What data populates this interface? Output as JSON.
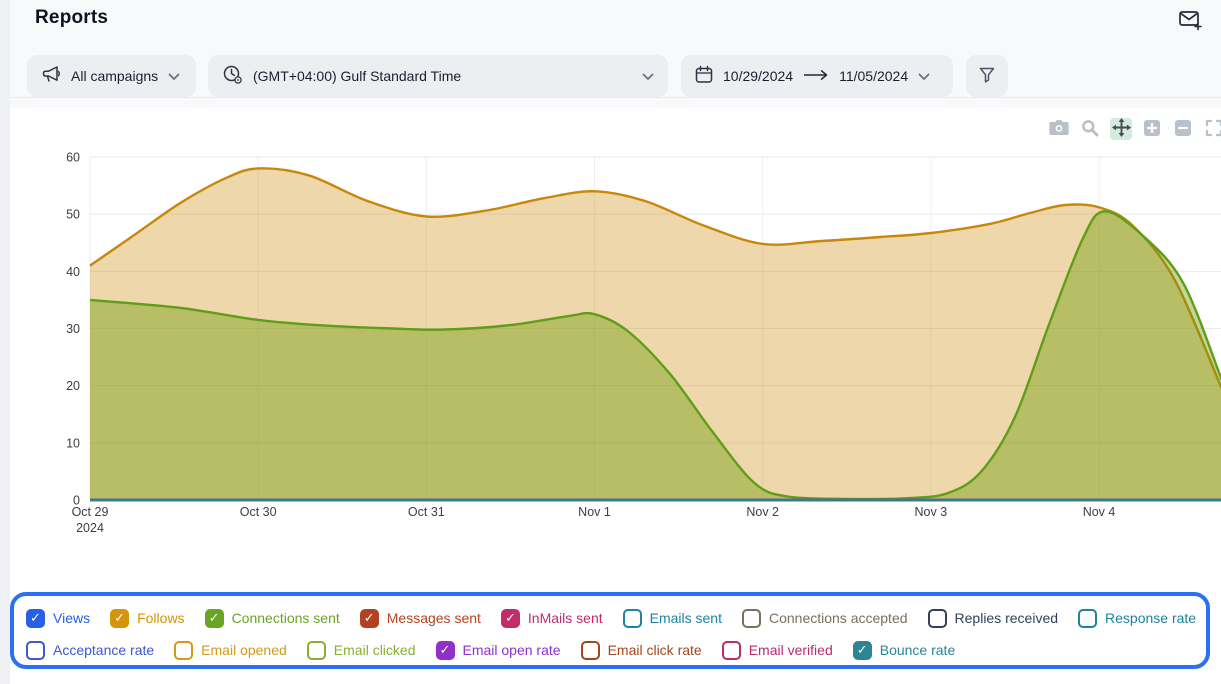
{
  "header": {
    "title": "Reports"
  },
  "filters": {
    "campaigns_label": "All campaigns",
    "timezone_label": "(GMT+04:00) Gulf Standard Time",
    "date_start": "10/29/2024",
    "date_end": "11/05/2024"
  },
  "toolbar": {
    "tools": [
      "camera",
      "zoom",
      "pan",
      "zoom-in",
      "zoom-out",
      "autoscale"
    ],
    "active_tool": "pan"
  },
  "chart_data": {
    "type": "area",
    "title": "",
    "ylim": [
      0,
      60
    ],
    "y_ticks": [
      0,
      10,
      20,
      30,
      40,
      50,
      60
    ],
    "x_ticks": [
      {
        "day": 0,
        "label": "Oct 29",
        "sub": "2024"
      },
      {
        "day": 1,
        "label": "Oct 30"
      },
      {
        "day": 2,
        "label": "Oct 31"
      },
      {
        "day": 3,
        "label": "Nov 1"
      },
      {
        "day": 4,
        "label": "Nov 2"
      },
      {
        "day": 5,
        "label": "Nov 3"
      },
      {
        "day": 6,
        "label": "Nov 4"
      }
    ],
    "grid": true,
    "legend_position": "bottom",
    "series": [
      {
        "name": "Follows",
        "line_color": "#c8870b",
        "fill_color": "#cc8800",
        "fill_opacity": 0.33,
        "points": [
          [
            0,
            41
          ],
          [
            0.27,
            46.5
          ],
          [
            0.54,
            52
          ],
          [
            0.8,
            56.2
          ],
          [
            1,
            58
          ],
          [
            1.3,
            56.8
          ],
          [
            1.65,
            52.3
          ],
          [
            2,
            49.6
          ],
          [
            2.35,
            50.6
          ],
          [
            2.7,
            52.8
          ],
          [
            3,
            54
          ],
          [
            3.3,
            52.3
          ],
          [
            3.65,
            48
          ],
          [
            4,
            44.8
          ],
          [
            4.35,
            45.3
          ],
          [
            4.7,
            46
          ],
          [
            5,
            46.7
          ],
          [
            5.35,
            48.3
          ],
          [
            5.6,
            50.3
          ],
          [
            5.8,
            51.6
          ],
          [
            6,
            51.2
          ],
          [
            6.2,
            48
          ],
          [
            6.45,
            38.5
          ],
          [
            6.73,
            19.5
          ]
        ]
      },
      {
        "name": "Connections sent",
        "line_color": "#5f9e17",
        "fill_color": "#669900",
        "fill_opacity": 0.4,
        "points": [
          [
            0,
            35
          ],
          [
            0.54,
            33.6
          ],
          [
            1,
            31.5
          ],
          [
            1.4,
            30.5
          ],
          [
            1.8,
            30
          ],
          [
            2.1,
            29.8
          ],
          [
            2.5,
            30.6
          ],
          [
            2.85,
            32.2
          ],
          [
            3,
            32.5
          ],
          [
            3.2,
            29.5
          ],
          [
            3.45,
            22
          ],
          [
            3.7,
            12
          ],
          [
            3.95,
            3
          ],
          [
            4.15,
            0.6
          ],
          [
            4.5,
            0.2
          ],
          [
            4.85,
            0.3
          ],
          [
            5.1,
            1.2
          ],
          [
            5.3,
            5
          ],
          [
            5.5,
            14.5
          ],
          [
            5.7,
            30.5
          ],
          [
            5.9,
            45.5
          ],
          [
            6.03,
            50.5
          ],
          [
            6.25,
            46.5
          ],
          [
            6.5,
            38
          ],
          [
            6.73,
            21
          ]
        ]
      },
      {
        "name": "Views",
        "line_color": "#2760e6",
        "fill_color": "none",
        "fill_opacity": 0,
        "points": [
          [
            0,
            0
          ],
          [
            6.73,
            0
          ]
        ]
      },
      {
        "name": "Messages sent",
        "line_color": "#b34320",
        "fill_color": "none",
        "fill_opacity": 0,
        "points": [
          [
            0,
            0
          ],
          [
            6.73,
            0
          ]
        ]
      },
      {
        "name": "InMails sent",
        "line_color": "#c22c6b",
        "fill_color": "none",
        "fill_opacity": 0,
        "points": [
          [
            0,
            0
          ],
          [
            6.73,
            0
          ]
        ]
      },
      {
        "name": "Email open rate",
        "line_color": "#9030c9",
        "fill_color": "none",
        "fill_opacity": 0,
        "points": [
          [
            0,
            0
          ],
          [
            6.73,
            0
          ]
        ]
      },
      {
        "name": "Bounce rate",
        "line_color": "#2f7f91",
        "fill_color": "none",
        "fill_opacity": 0,
        "points": [
          [
            0,
            0
          ],
          [
            6.73,
            0
          ]
        ]
      }
    ]
  },
  "legend": {
    "border_color": "#2b70f4",
    "rows": [
      [
        {
          "label": "Views",
          "color": "#2760e6",
          "checked": true
        },
        {
          "label": "Follows",
          "color": "#d4940c",
          "checked": true
        },
        {
          "label": "Connections sent",
          "color": "#6aa522",
          "checked": true
        },
        {
          "label": "Messages sent",
          "color": "#b34320",
          "checked": true
        },
        {
          "label": "InMails sent",
          "color": "#c22c6b",
          "checked": true
        },
        {
          "label": "Emails sent",
          "color": "#1d83a0",
          "checked": false
        },
        {
          "label": "Connections accepted",
          "color": "#7c6f5f",
          "checked": false
        },
        {
          "label": "Replies received",
          "color": "#31415c",
          "checked": false
        },
        {
          "label": "Response rate",
          "color": "#1d83a0",
          "checked": false
        }
      ],
      [
        {
          "label": "Acceptance rate",
          "color": "#3f57cf",
          "checked": false
        },
        {
          "label": "Email opened",
          "color": "#d29a18",
          "checked": false
        },
        {
          "label": "Email clicked",
          "color": "#8bad33",
          "checked": false
        },
        {
          "label": "Email open rate",
          "color": "#9030c9",
          "checked": true
        },
        {
          "label": "Email click rate",
          "color": "#a8441d",
          "checked": false
        },
        {
          "label": "Email verified",
          "color": "#bb2a70",
          "checked": false
        },
        {
          "label": "Bounce rate",
          "color": "#2b8594",
          "checked": true
        }
      ]
    ]
  }
}
